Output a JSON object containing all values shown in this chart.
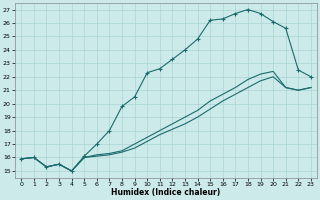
{
  "xlabel": "Humidex (Indice chaleur)",
  "bg_color": "#cdeaea",
  "grid_color": "#aad4d4",
  "line_color": "#1a6b6b",
  "xlim": [
    -0.5,
    23.5
  ],
  "ylim": [
    14.5,
    27.5
  ],
  "xticks": [
    0,
    1,
    2,
    3,
    4,
    5,
    6,
    7,
    8,
    9,
    10,
    11,
    12,
    13,
    14,
    15,
    16,
    17,
    18,
    19,
    20,
    21,
    22,
    23
  ],
  "yticks": [
    15,
    16,
    17,
    18,
    19,
    20,
    21,
    22,
    23,
    24,
    25,
    26,
    27
  ],
  "line1_x": [
    0,
    1,
    2,
    3,
    4,
    5,
    6,
    7,
    8,
    9,
    10,
    11,
    12,
    13,
    14,
    15,
    16,
    17,
    18,
    19,
    20,
    21,
    22,
    23
  ],
  "line1_y": [
    15.9,
    16.0,
    15.3,
    15.5,
    15.0,
    16.1,
    17.0,
    18.0,
    19.8,
    20.5,
    22.3,
    22.6,
    23.3,
    24.0,
    24.8,
    26.2,
    26.3,
    26.7,
    27.0,
    26.7,
    26.1,
    25.6,
    22.5,
    22.0
  ],
  "line2_x": [
    0,
    1,
    2,
    3,
    4,
    5,
    6,
    7,
    8,
    9,
    10,
    11,
    12,
    13,
    14,
    15,
    16,
    17,
    18,
    19,
    20,
    21,
    22,
    23
  ],
  "line2_y": [
    15.9,
    16.0,
    15.3,
    15.5,
    15.0,
    16.0,
    16.2,
    16.3,
    16.5,
    17.0,
    17.5,
    18.0,
    18.5,
    19.0,
    19.5,
    20.2,
    20.7,
    21.2,
    21.8,
    22.2,
    22.4,
    21.2,
    21.0,
    21.2
  ],
  "line3_x": [
    0,
    1,
    2,
    3,
    4,
    5,
    6,
    7,
    8,
    9,
    10,
    11,
    12,
    13,
    14,
    15,
    16,
    17,
    18,
    19,
    20,
    21,
    22,
    23
  ],
  "line3_y": [
    15.9,
    16.0,
    15.3,
    15.5,
    15.0,
    16.0,
    16.1,
    16.2,
    16.4,
    16.7,
    17.2,
    17.7,
    18.1,
    18.5,
    19.0,
    19.6,
    20.2,
    20.7,
    21.2,
    21.7,
    22.0,
    21.2,
    21.0,
    21.2
  ]
}
